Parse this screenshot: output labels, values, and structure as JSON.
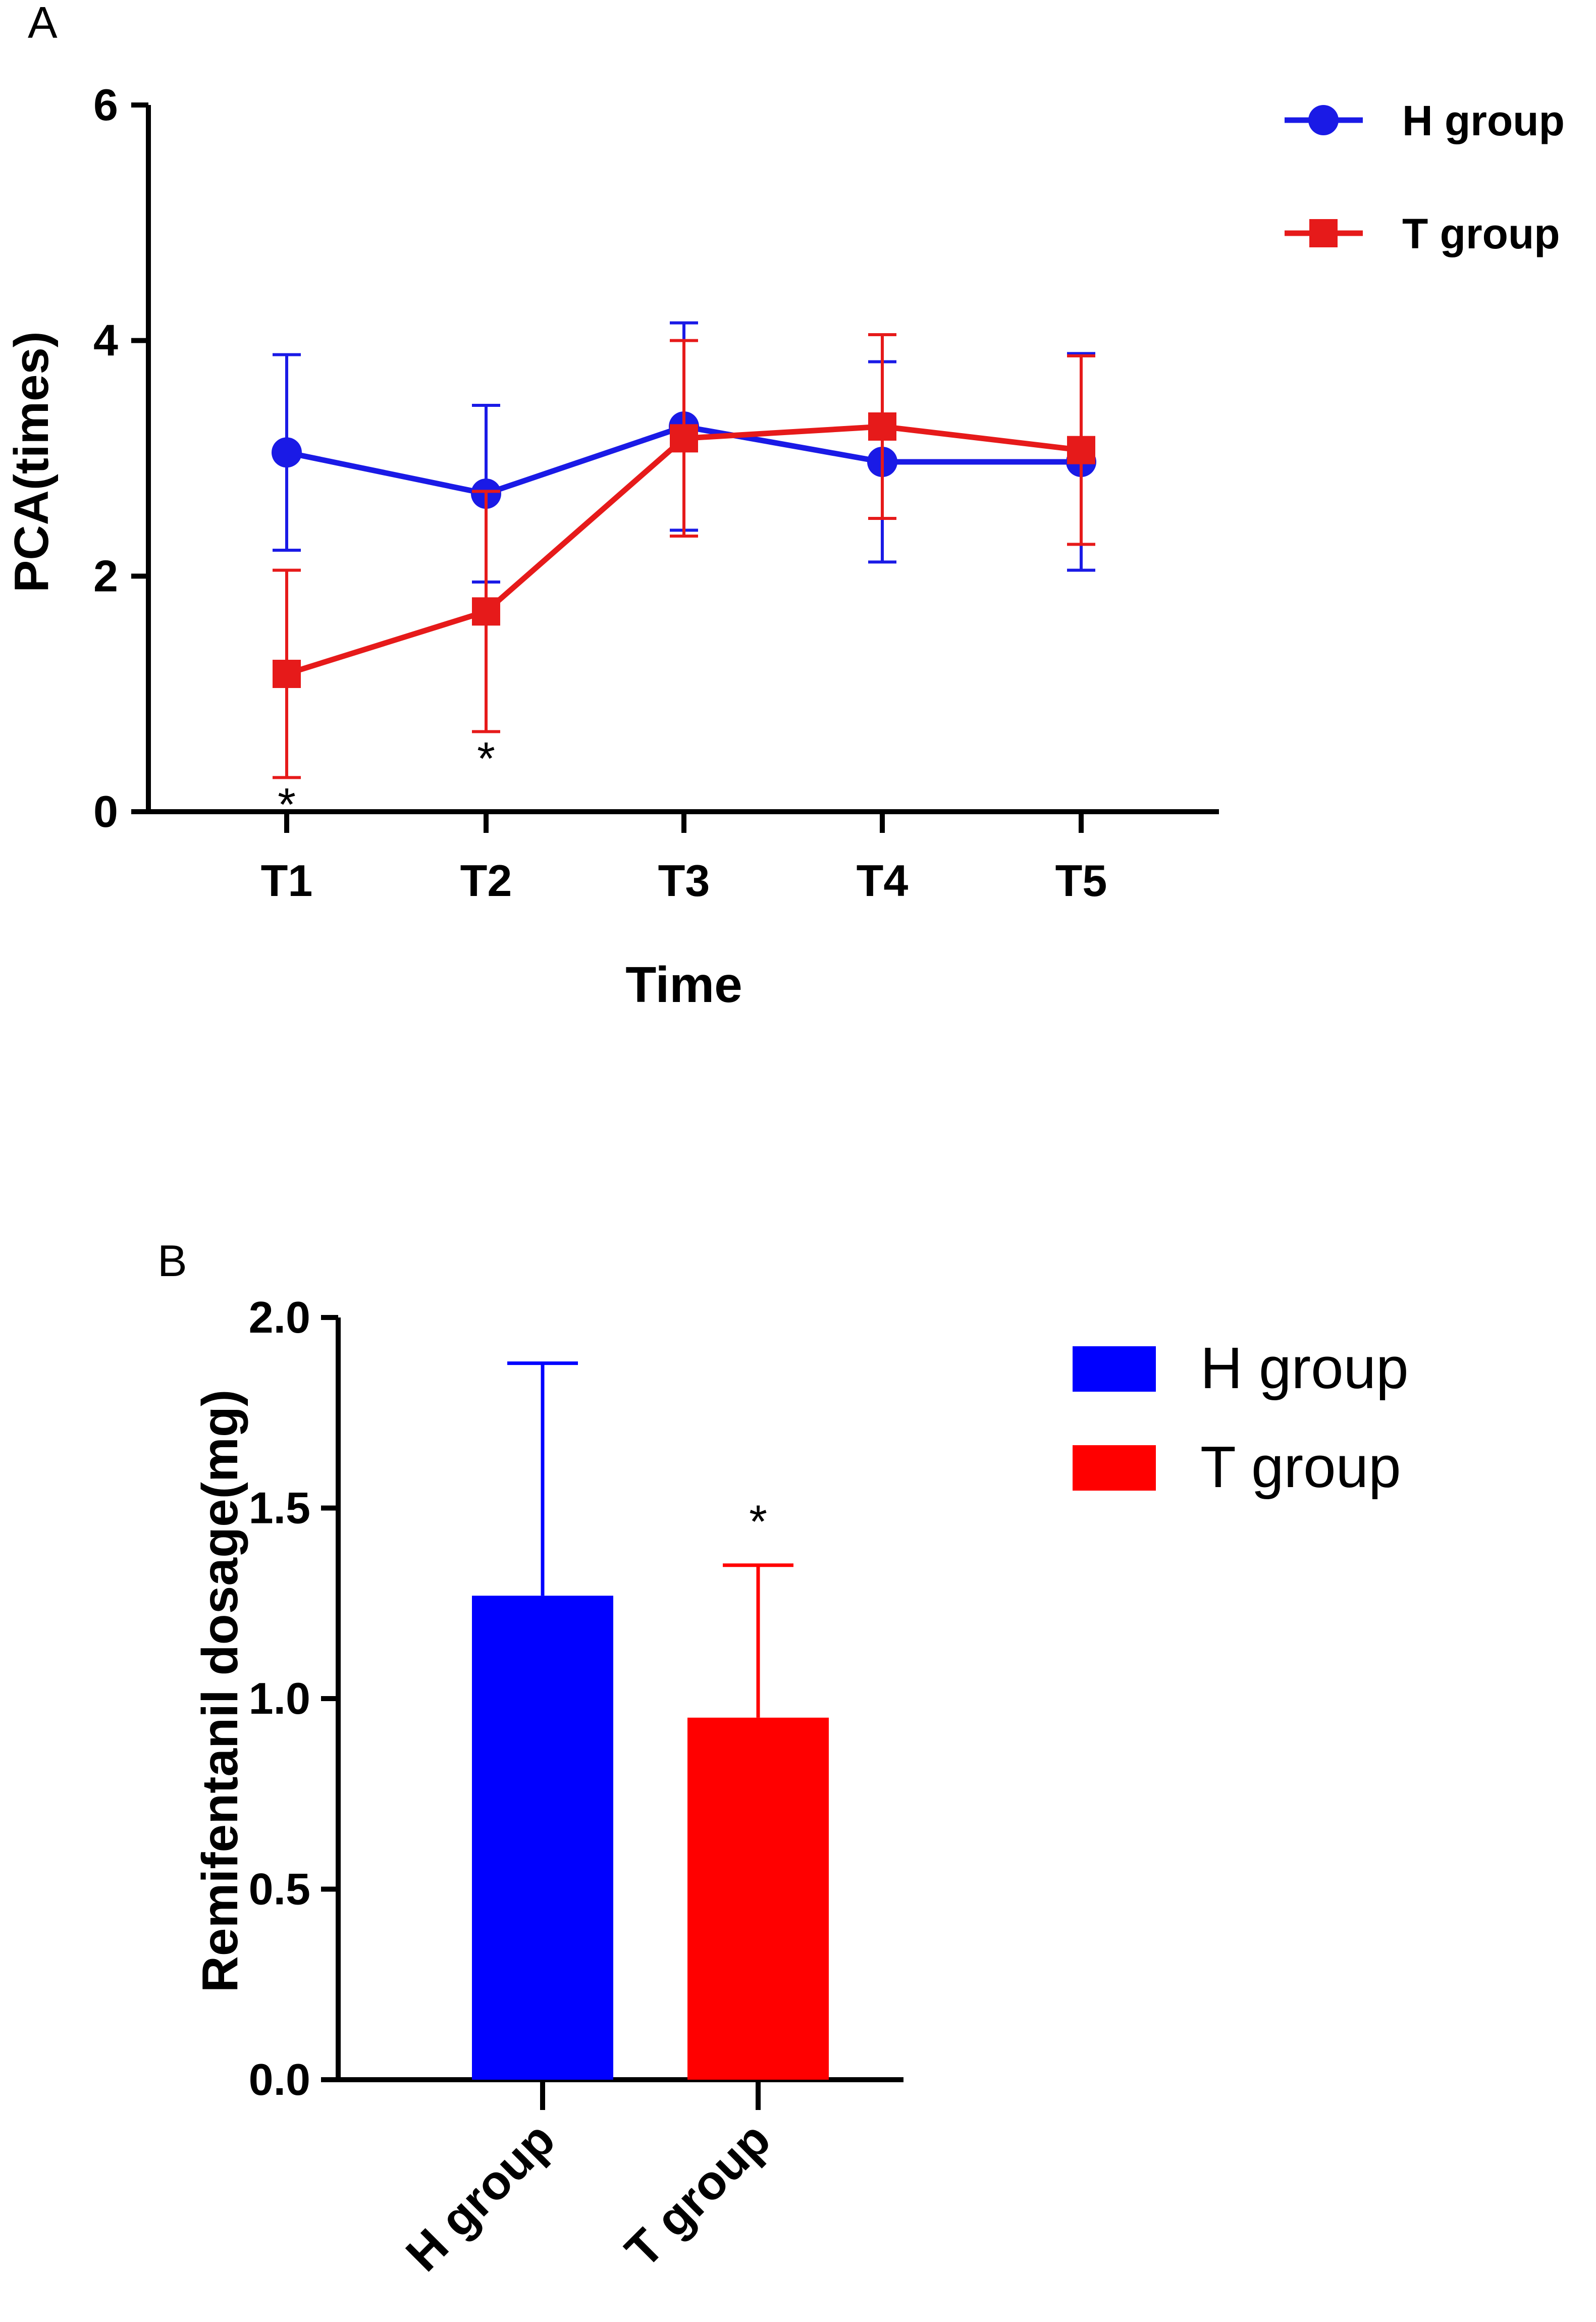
{
  "chart_data": [
    {
      "panel_label": "A",
      "type": "line",
      "title": "",
      "xlabel": "Time",
      "ylabel": "PCA(times)",
      "categories": [
        "T1",
        "T2",
        "T3",
        "T4",
        "T5"
      ],
      "ylim": [
        0,
        6
      ],
      "yticks": [
        0,
        2,
        4,
        6
      ],
      "ytick_labels": [
        "0",
        "2",
        "4",
        "6"
      ],
      "legend_position": "top-right",
      "series": [
        {
          "name": "H group",
          "color": "#1a1ae6",
          "marker": "circle",
          "values": [
            3.05,
            2.7,
            3.27,
            2.97,
            2.97
          ],
          "errors": [
            0.83,
            0.75,
            0.88,
            0.85,
            0.92
          ]
        },
        {
          "name": "T group",
          "color": "#e61a1a",
          "marker": "square",
          "values": [
            1.17,
            1.7,
            3.17,
            3.27,
            3.07
          ],
          "errors": [
            0.88,
            1.02,
            0.83,
            0.78,
            0.8
          ]
        }
      ],
      "annotations": [
        {
          "text": "*",
          "category": "T1"
        },
        {
          "text": "*",
          "category": "T2"
        }
      ]
    },
    {
      "panel_label": "B",
      "type": "bar",
      "title": "",
      "xlabel": "",
      "ylabel": "Remifentanil dosage(mg)",
      "categories": [
        "H group",
        "T group"
      ],
      "ylim": [
        0,
        2.0
      ],
      "yticks": [
        0,
        0.5,
        1.0,
        1.5,
        2.0
      ],
      "ytick_labels": [
        "0.0",
        "0.5",
        "1.0",
        "1.5",
        "2.0"
      ],
      "legend_position": "top-right",
      "series": [
        {
          "name": "Remifentanil dosage",
          "values": [
            1.27,
            0.95
          ],
          "errors": [
            0.61,
            0.4
          ],
          "colors": [
            "#0000ff",
            "#ff0000"
          ]
        }
      ],
      "legend": [
        {
          "label": "H group",
          "color": "#0000ff"
        },
        {
          "label": "T group",
          "color": "#ff0000"
        }
      ],
      "annotations": [
        {
          "text": "*",
          "category": "T group"
        }
      ]
    }
  ]
}
